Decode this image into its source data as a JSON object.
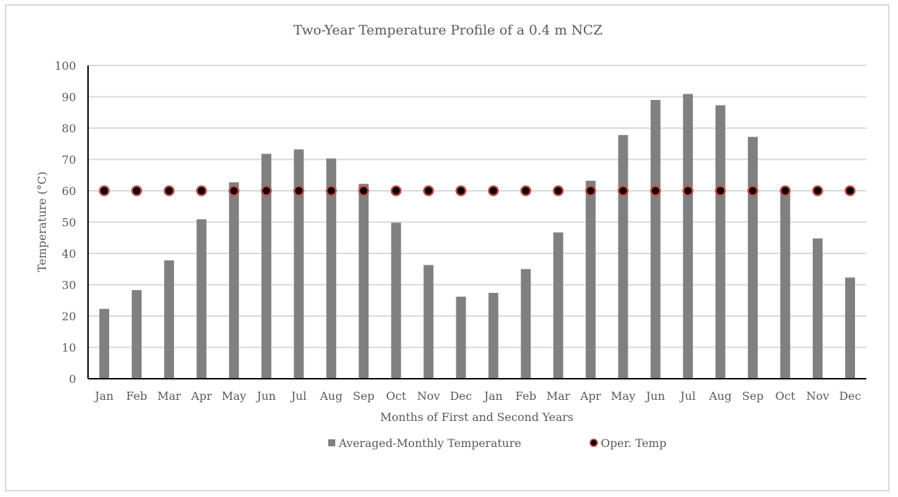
{
  "chart_data": {
    "type": "bar",
    "title": "Two-Year Temperature Profile of a 0.4 m NCZ",
    "xlabel": "Months of First and Second Years",
    "ylabel": "Temperature (°C)",
    "ylim": [
      0,
      100
    ],
    "yticks": [
      0,
      10,
      20,
      30,
      40,
      50,
      60,
      70,
      80,
      90,
      100
    ],
    "grid": true,
    "legend_position": "bottom",
    "categories": [
      "Jan",
      "Feb",
      "Mar",
      "Apr",
      "May",
      "Jun",
      "Jul",
      "Aug",
      "Sep",
      "Oct",
      "Nov",
      "Dec",
      "Jan",
      "Feb",
      "Mar",
      "Apr",
      "May",
      "Jun",
      "Jul",
      "Aug",
      "Sep",
      "Oct",
      "Nov",
      "Dec"
    ],
    "series": [
      {
        "name": "Averaged-Monthly Temperature",
        "type": "bar",
        "color": "#808080",
        "values": [
          22.3,
          28.3,
          37.8,
          50.9,
          62.7,
          71.8,
          73.2,
          70.3,
          62.2,
          49.8,
          36.3,
          26.2,
          27.4,
          35.0,
          46.7,
          63.2,
          77.8,
          89.0,
          90.9,
          87.3,
          77.2,
          60.4,
          44.8,
          32.3
        ]
      },
      {
        "name": "Oper. Temp",
        "type": "scatter",
        "color": "#000000",
        "edge_color": "#c0504d",
        "values": [
          60,
          60,
          60,
          60,
          60,
          60,
          60,
          60,
          60,
          60,
          60,
          60,
          60,
          60,
          60,
          60,
          60,
          60,
          60,
          60,
          60,
          60,
          60,
          60
        ]
      }
    ]
  }
}
